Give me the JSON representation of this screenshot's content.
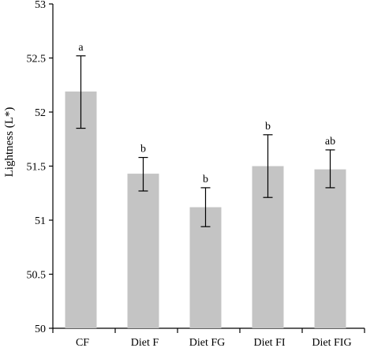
{
  "chart_data": {
    "type": "bar",
    "title": "",
    "xlabel": "",
    "ylabel": "Lightness (L*)",
    "ylim": [
      50,
      53
    ],
    "yticks": [
      50,
      50.5,
      51,
      51.5,
      52,
      52.5,
      53
    ],
    "ytick_labels": [
      "50",
      "50.5",
      "51",
      "51.5",
      "52",
      "52.5",
      "53"
    ],
    "categories": [
      "CF",
      "Diet F",
      "Diet FG",
      "Diet FI",
      "Diet FIG"
    ],
    "values": [
      52.19,
      51.43,
      51.12,
      51.5,
      51.47
    ],
    "error_low": [
      51.85,
      51.27,
      50.94,
      51.21,
      51.3
    ],
    "error_high": [
      52.52,
      51.58,
      51.3,
      51.79,
      51.65
    ],
    "significance_labels": [
      "a",
      "b",
      "b",
      "b",
      "ab"
    ],
    "bar_color": "#c4c4c4",
    "grid": false,
    "legend": "none"
  }
}
